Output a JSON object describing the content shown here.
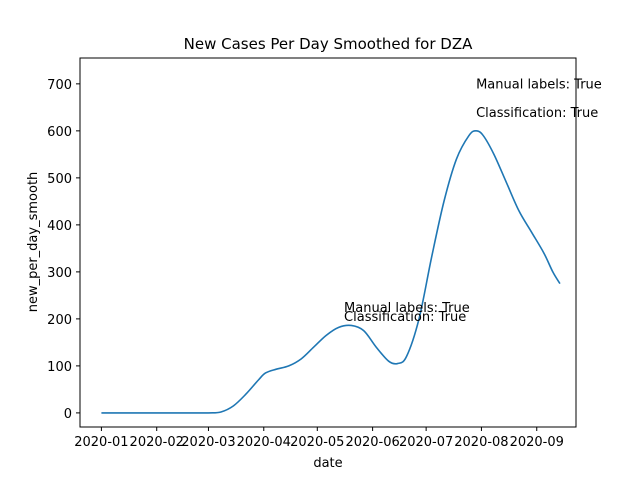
{
  "chart_data": {
    "type": "line",
    "title": "New Cases Per Day Smoothed for DZA",
    "xlabel": "date",
    "ylabel": "new_per_day_smooth",
    "x_ticks": [
      "2020-01",
      "2020-02",
      "2020-03",
      "2020-04",
      "2020-05",
      "2020-06",
      "2020-07",
      "2020-08",
      "2020-09"
    ],
    "y_ticks": [
      0,
      100,
      200,
      300,
      400,
      500,
      600,
      700
    ],
    "xlim": [
      "2019-12-20",
      "2020-09-23"
    ],
    "ylim": [
      -30,
      755
    ],
    "grid": false,
    "line_color": "#1f77b4",
    "series": [
      {
        "points": [
          [
            "2020-01-01",
            0
          ],
          [
            "2020-01-15",
            0
          ],
          [
            "2020-02-01",
            0
          ],
          [
            "2020-02-15",
            0
          ],
          [
            "2020-03-01",
            0
          ],
          [
            "2020-03-08",
            2
          ],
          [
            "2020-03-15",
            15
          ],
          [
            "2020-03-22",
            40
          ],
          [
            "2020-03-29",
            70
          ],
          [
            "2020-04-02",
            85
          ],
          [
            "2020-04-08",
            93
          ],
          [
            "2020-04-15",
            100
          ],
          [
            "2020-04-22",
            115
          ],
          [
            "2020-04-29",
            140
          ],
          [
            "2020-05-06",
            165
          ],
          [
            "2020-05-13",
            182
          ],
          [
            "2020-05-20",
            186
          ],
          [
            "2020-05-27",
            175
          ],
          [
            "2020-06-03",
            140
          ],
          [
            "2020-06-10",
            110
          ],
          [
            "2020-06-15",
            105
          ],
          [
            "2020-06-20",
            120
          ],
          [
            "2020-06-27",
            200
          ],
          [
            "2020-07-04",
            330
          ],
          [
            "2020-07-11",
            450
          ],
          [
            "2020-07-18",
            540
          ],
          [
            "2020-07-25",
            590
          ],
          [
            "2020-07-29",
            600
          ],
          [
            "2020-08-02",
            590
          ],
          [
            "2020-08-08",
            550
          ],
          [
            "2020-08-15",
            490
          ],
          [
            "2020-08-22",
            430
          ],
          [
            "2020-08-29",
            385
          ],
          [
            "2020-09-05",
            340
          ],
          [
            "2020-09-10",
            300
          ],
          [
            "2020-09-14",
            275
          ]
        ]
      }
    ],
    "annotations": [
      {
        "text": "Manual labels: True",
        "x": "2020-07-29",
        "y": 690
      },
      {
        "text": "Classification: True",
        "x": "2020-07-29",
        "y": 630
      },
      {
        "text": "Manual labels: True",
        "x": "2020-05-16",
        "y": 215
      },
      {
        "text": "Classification: True",
        "x": "2020-05-16",
        "y": 195
      }
    ]
  }
}
